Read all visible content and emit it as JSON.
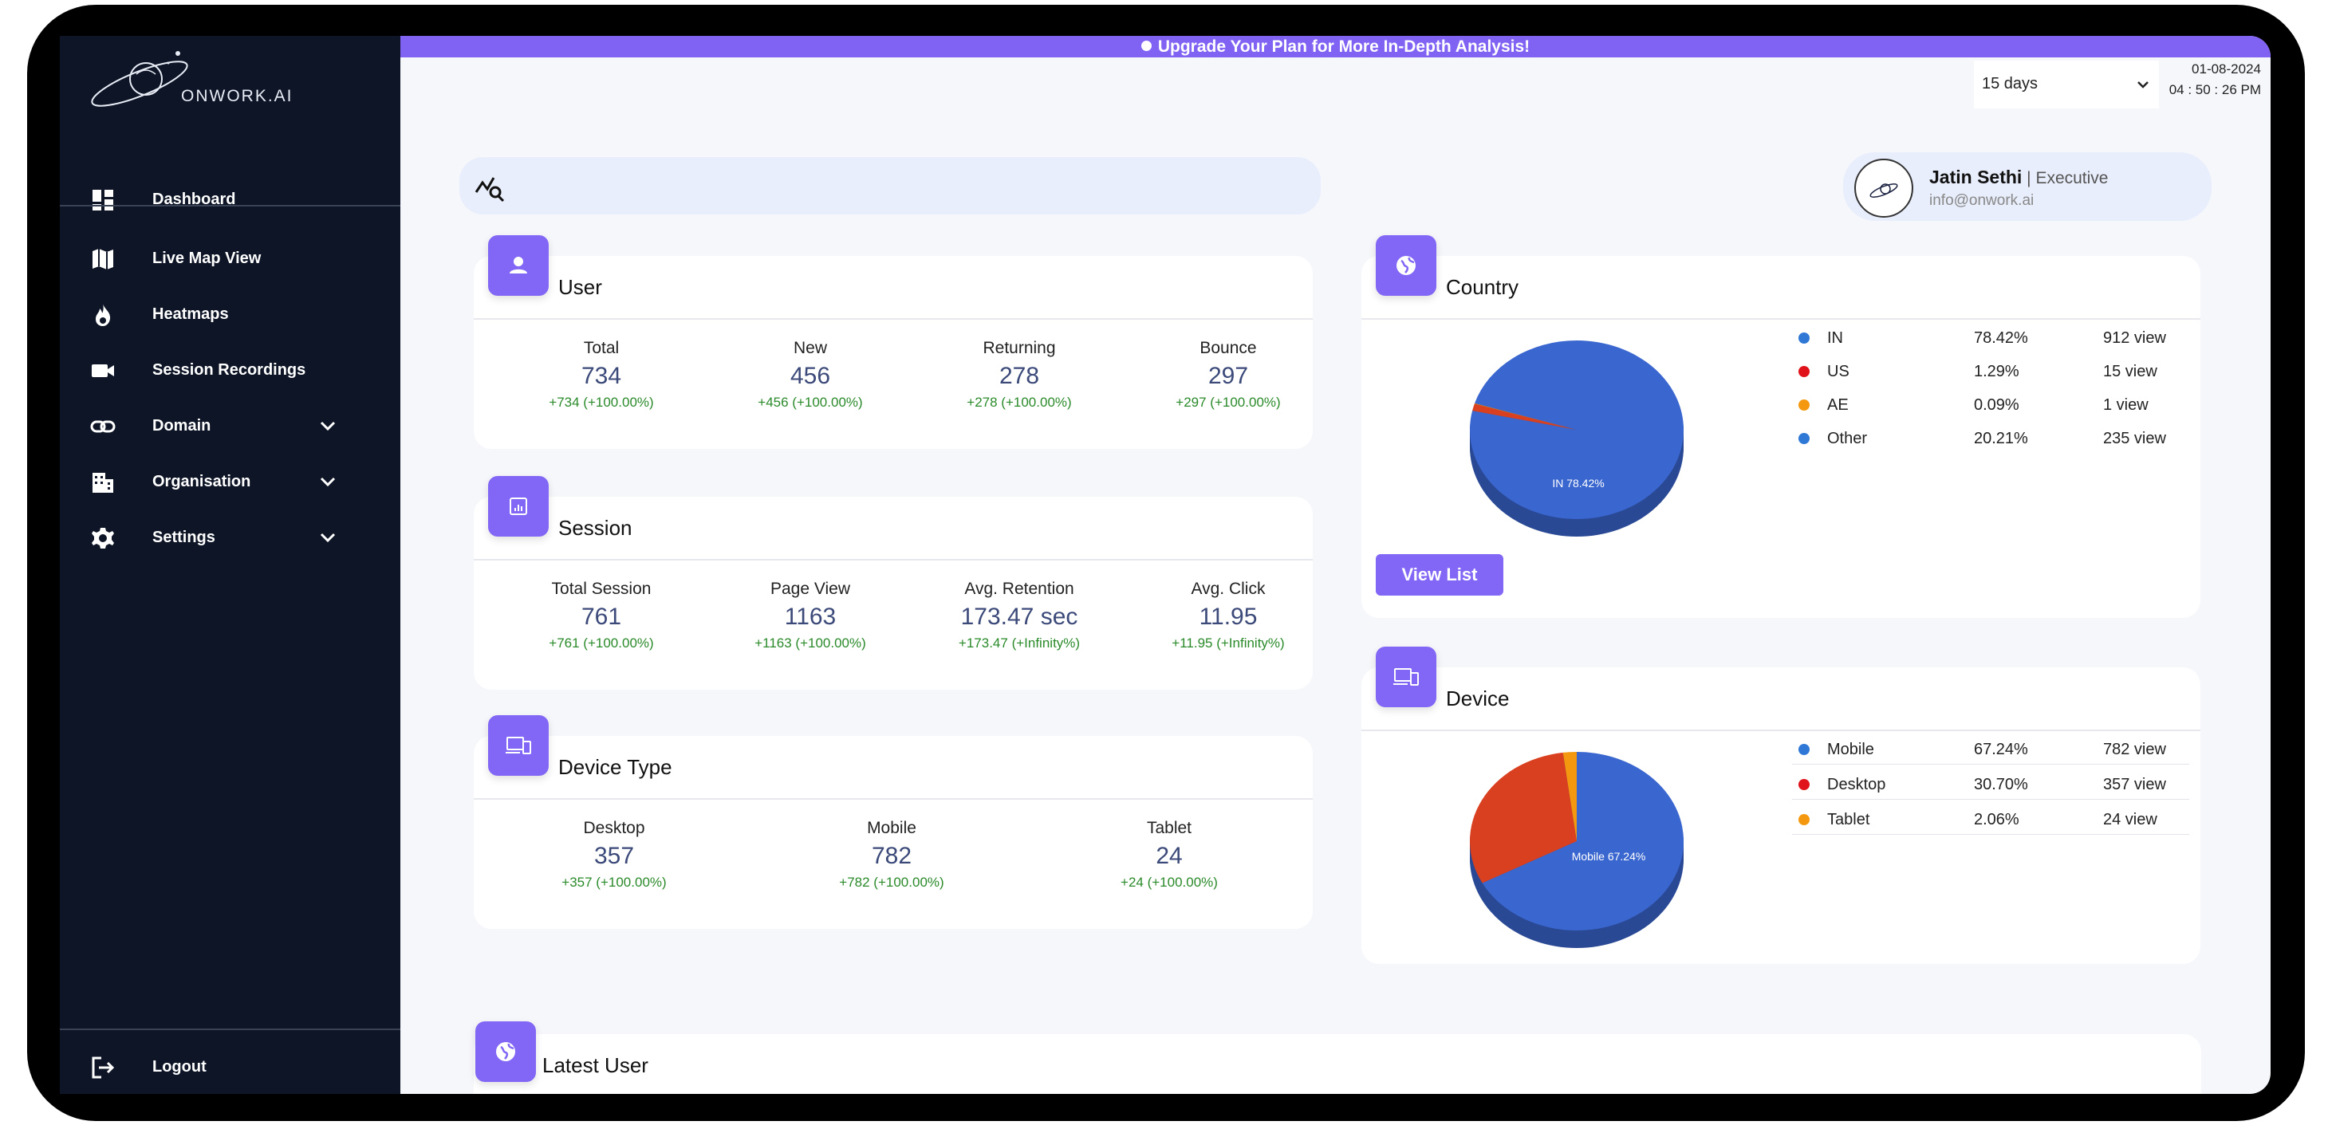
{
  "brand": {
    "logo_text": "ONWORK.AI"
  },
  "banner": {
    "text": "Upgrade Your Plan for More In-Depth Analysis!"
  },
  "sidebar": {
    "items": [
      {
        "label": "Dashboard",
        "icon": "dashboard-icon"
      },
      {
        "label": "Live Map View",
        "icon": "map-icon"
      },
      {
        "label": "Heatmaps",
        "icon": "flame-icon"
      },
      {
        "label": "Session Recordings",
        "icon": "video-icon"
      },
      {
        "label": "Domain",
        "icon": "link-icon"
      },
      {
        "label": "Organisation",
        "icon": "building-icon"
      },
      {
        "label": "Settings",
        "icon": "gear-icon"
      }
    ],
    "logout_label": "Logout"
  },
  "filter": {
    "range": "15 days",
    "date": "01-08-2024",
    "time": "04 : 50 : 26 PM"
  },
  "profile": {
    "name": "Jatin Sethi",
    "separator": " | ",
    "role": "Executive",
    "email": "info@onwork.ai"
  },
  "user_card": {
    "title": "User",
    "stats": [
      {
        "label": "Total",
        "value": "734",
        "delta": "+734 (+100.00%)"
      },
      {
        "label": "New",
        "value": "456",
        "delta": "+456 (+100.00%)"
      },
      {
        "label": "Returning",
        "value": "278",
        "delta": "+278 (+100.00%)"
      },
      {
        "label": "Bounce",
        "value": "297",
        "delta": "+297 (+100.00%)"
      }
    ]
  },
  "session_card": {
    "title": "Session",
    "stats": [
      {
        "label": "Total Session",
        "value": "761",
        "delta": "+761 (+100.00%)"
      },
      {
        "label": "Page View",
        "value": "1163",
        "delta": "+1163 (+100.00%)"
      },
      {
        "label": "Avg. Retention",
        "value": "173.47 sec",
        "delta": "+173.47 (+Infinity%)"
      },
      {
        "label": "Avg. Click",
        "value": "11.95",
        "delta": "+11.95 (+Infinity%)"
      }
    ]
  },
  "device_type_card": {
    "title": "Device Type",
    "stats": [
      {
        "label": "Desktop",
        "value": "357",
        "delta": "+357 (+100.00%)"
      },
      {
        "label": "Mobile",
        "value": "782",
        "delta": "+782 (+100.00%)"
      },
      {
        "label": "Tablet",
        "value": "24",
        "delta": "+24 (+100.00%)"
      }
    ]
  },
  "country_card": {
    "title": "Country",
    "button": "View List",
    "pie_label": "IN 78.42%",
    "legend": [
      {
        "name": "IN",
        "pct": "78.42%",
        "views": "912  view",
        "color": "#2f78d6"
      },
      {
        "name": "US",
        "pct": "1.29%",
        "views": "15  view",
        "color": "#e0131a"
      },
      {
        "name": "AE",
        "pct": "0.09%",
        "views": "1  view",
        "color": "#f4990f"
      },
      {
        "name": "Other",
        "pct": "20.21%",
        "views": "235  view",
        "color": "#2f78d6"
      }
    ]
  },
  "device_card": {
    "title": "Device",
    "pie_label": "Mobile 67.24%",
    "legend": [
      {
        "name": "Mobile",
        "pct": "67.24%",
        "views": "782  view",
        "color": "#2f78d6"
      },
      {
        "name": "Desktop",
        "pct": "30.70%",
        "views": "357  view",
        "color": "#e0131a"
      },
      {
        "name": "Tablet",
        "pct": "2.06%",
        "views": "24  view",
        "color": "#f4990f"
      }
    ]
  },
  "latest_user": {
    "title": "Latest User"
  },
  "chart_data": [
    {
      "type": "pie",
      "title": "Country",
      "categories": [
        "IN",
        "US",
        "AE",
        "Other"
      ],
      "values": [
        78.42,
        1.29,
        0.09,
        20.21
      ],
      "views": [
        912,
        15,
        1,
        235
      ],
      "colors": [
        "#3a66cf",
        "#d8401f",
        "#f4990f",
        "#3a66cf"
      ],
      "slice_label": "IN 78.42%"
    },
    {
      "type": "pie",
      "title": "Device",
      "categories": [
        "Mobile",
        "Desktop",
        "Tablet"
      ],
      "values": [
        67.24,
        30.7,
        2.06
      ],
      "views": [
        782,
        357,
        24
      ],
      "colors": [
        "#3a66cf",
        "#d8401f",
        "#f4990f"
      ],
      "slice_label": "Mobile 67.24%"
    }
  ]
}
